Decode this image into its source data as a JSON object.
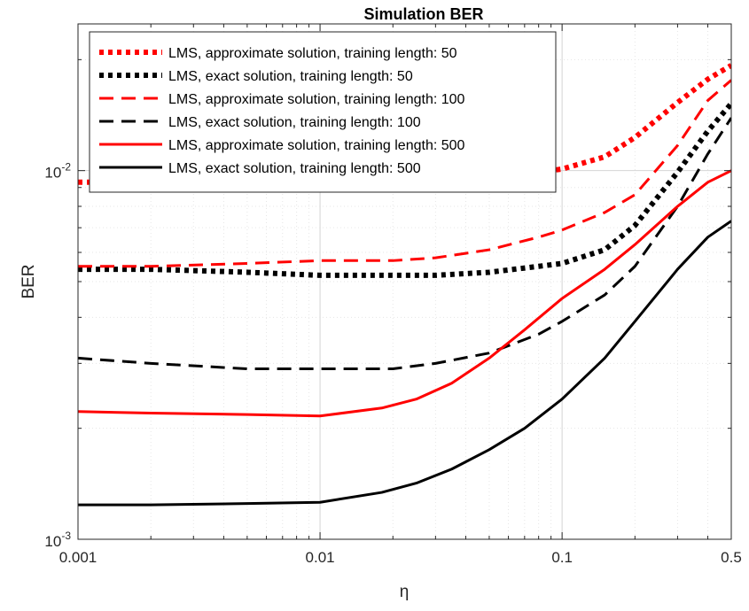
{
  "chart_data": {
    "type": "line",
    "title": "Simulation BER",
    "xlabel": "η",
    "ylabel": "BER",
    "xscale": "log",
    "yscale": "log",
    "xlim": [
      0.001,
      0.5
    ],
    "ylim": [
      0.001,
      0.025
    ],
    "grid": true,
    "legend_position": "top-left",
    "x_ticks": [
      {
        "value": 0.001,
        "label": "0.001"
      },
      {
        "value": 0.01,
        "label": "0.01"
      },
      {
        "value": 0.1,
        "label": "0.1"
      },
      {
        "value": 0.5,
        "label": "0.5"
      }
    ],
    "y_ticks": [
      {
        "value": 0.001,
        "base": "10",
        "exp": "-3"
      },
      {
        "value": 0.01,
        "base": "10",
        "exp": "-2"
      }
    ],
    "series": [
      {
        "name": "LMS, approximate solution, training length:  50",
        "color": "#ff0000",
        "style": "dotted",
        "x": [
          0.001,
          0.002,
          0.005,
          0.01,
          0.02,
          0.03,
          0.05,
          0.08,
          0.1,
          0.15,
          0.2,
          0.3,
          0.4,
          0.5
        ],
        "y": [
          0.0093,
          0.0093,
          0.0092,
          0.0092,
          0.0093,
          0.0094,
          0.0096,
          0.0099,
          0.0101,
          0.0109,
          0.0123,
          0.0153,
          0.0177,
          0.0193
        ]
      },
      {
        "name": "LMS, exact solution, training length:  50",
        "color": "#000000",
        "style": "dotted",
        "x": [
          0.001,
          0.002,
          0.005,
          0.01,
          0.02,
          0.03,
          0.05,
          0.08,
          0.1,
          0.15,
          0.2,
          0.3,
          0.4,
          0.5
        ],
        "y": [
          0.0054,
          0.0054,
          0.0053,
          0.0052,
          0.0052,
          0.0052,
          0.0053,
          0.0055,
          0.0056,
          0.0061,
          0.0071,
          0.0099,
          0.0128,
          0.0152
        ]
      },
      {
        "name": "LMS, approximate solution, training length:  100",
        "color": "#ff0000",
        "style": "dashed",
        "x": [
          0.001,
          0.002,
          0.005,
          0.01,
          0.02,
          0.03,
          0.05,
          0.08,
          0.1,
          0.15,
          0.2,
          0.3,
          0.4,
          0.5
        ],
        "y": [
          0.0055,
          0.0055,
          0.0056,
          0.0057,
          0.0057,
          0.0058,
          0.0061,
          0.0066,
          0.0069,
          0.0077,
          0.0086,
          0.0117,
          0.0155,
          0.0176
        ]
      },
      {
        "name": "LMS, exact solution, training length:  100",
        "color": "#000000",
        "style": "dashed",
        "x": [
          0.001,
          0.002,
          0.005,
          0.01,
          0.02,
          0.03,
          0.05,
          0.08,
          0.1,
          0.15,
          0.2,
          0.3,
          0.4,
          0.5
        ],
        "y": [
          0.0031,
          0.003,
          0.0029,
          0.0029,
          0.0029,
          0.003,
          0.0032,
          0.0036,
          0.0039,
          0.0046,
          0.0055,
          0.008,
          0.0111,
          0.0139
        ]
      },
      {
        "name": "LMS, approximate solution, training length:  500",
        "color": "#ff0000",
        "style": "solid",
        "x": [
          0.001,
          0.002,
          0.005,
          0.01,
          0.018,
          0.025,
          0.035,
          0.05,
          0.07,
          0.1,
          0.15,
          0.2,
          0.3,
          0.4,
          0.5
        ],
        "y": [
          0.00222,
          0.0022,
          0.00218,
          0.00216,
          0.00227,
          0.0024,
          0.00265,
          0.0031,
          0.0037,
          0.0045,
          0.0054,
          0.0063,
          0.008,
          0.0093,
          0.01
        ]
      },
      {
        "name": "LMS, exact solution, training length:  500",
        "color": "#000000",
        "style": "solid",
        "x": [
          0.001,
          0.002,
          0.005,
          0.01,
          0.018,
          0.025,
          0.035,
          0.05,
          0.07,
          0.1,
          0.15,
          0.2,
          0.3,
          0.4,
          0.5
        ],
        "y": [
          0.00124,
          0.00124,
          0.00125,
          0.00126,
          0.00134,
          0.00142,
          0.00155,
          0.00175,
          0.002,
          0.0024,
          0.0031,
          0.0039,
          0.0054,
          0.0066,
          0.0073
        ]
      }
    ]
  }
}
